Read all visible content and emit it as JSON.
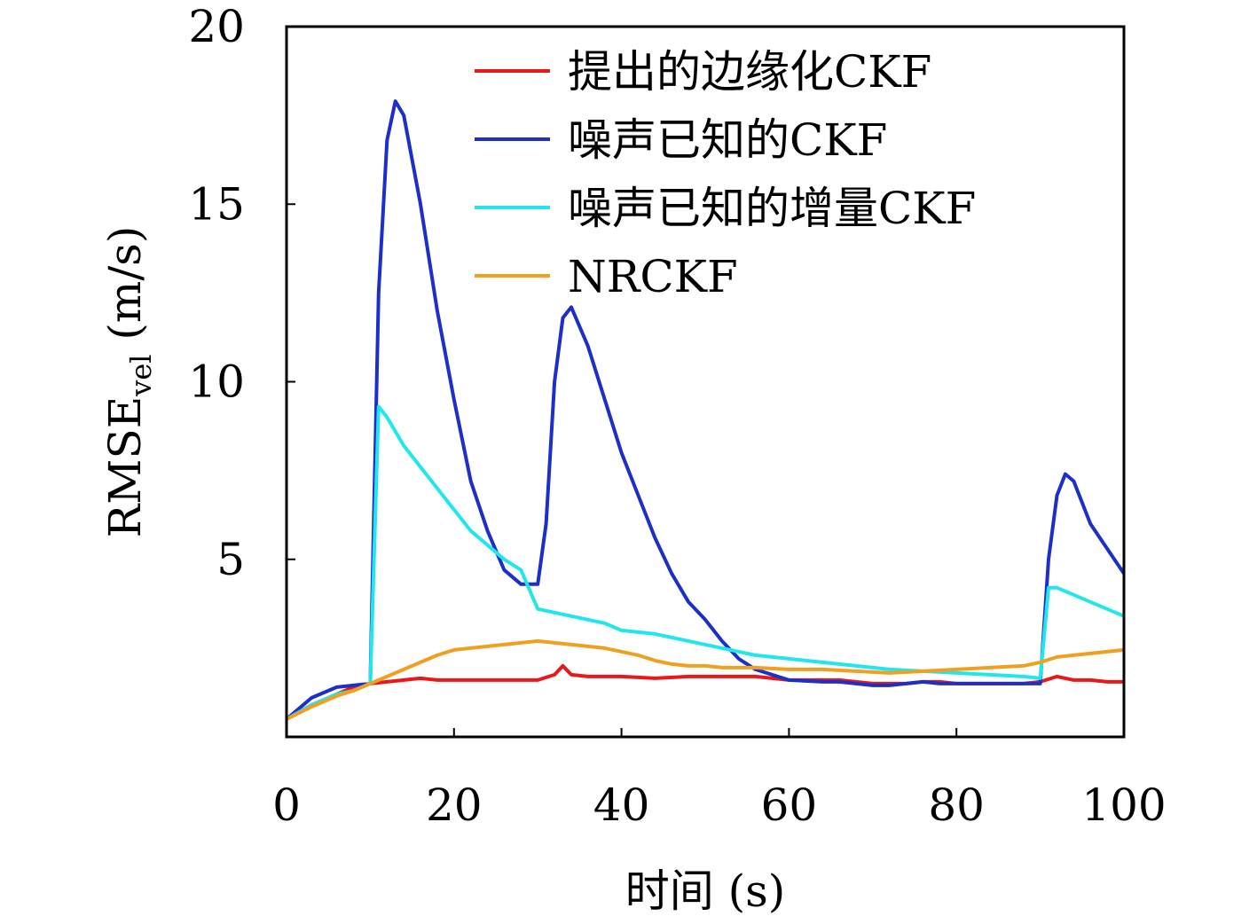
{
  "chart_data": {
    "type": "line",
    "xlabel": "时间 (s)",
    "ylabel": {
      "main": "RMSE",
      "sub": "vel",
      "unit": " (m/s)"
    },
    "xlim": [
      0,
      100
    ],
    "ylim": [
      0,
      20
    ],
    "xticks": [
      {
        "value": 0,
        "label": "0"
      },
      {
        "value": 20,
        "label": "20"
      },
      {
        "value": 40,
        "label": "40"
      },
      {
        "value": 60,
        "label": "60"
      },
      {
        "value": 80,
        "label": "80"
      },
      {
        "value": 100,
        "label": "100"
      }
    ],
    "yticks": [
      {
        "value": 5,
        "label": "5"
      },
      {
        "value": 10,
        "label": "10"
      },
      {
        "value": 15,
        "label": "15"
      },
      {
        "value": 20,
        "label": "20"
      }
    ],
    "grid": false,
    "legend_position": "top-right",
    "series": [
      {
        "name": "提出的边缘化CKF",
        "color": "#e8191b",
        "x": [
          0,
          3,
          6,
          8,
          10,
          12,
          14,
          16,
          18,
          20,
          22,
          24,
          26,
          28,
          30,
          32,
          33,
          34,
          36,
          38,
          40,
          44,
          48,
          52,
          56,
          60,
          64,
          66,
          68,
          70,
          72,
          74,
          76,
          78,
          80,
          84,
          88,
          90,
          92,
          94,
          96,
          98,
          100
        ],
        "y": [
          0.5,
          0.9,
          1.2,
          1.4,
          1.5,
          1.55,
          1.6,
          1.65,
          1.6,
          1.6,
          1.6,
          1.6,
          1.6,
          1.6,
          1.6,
          1.75,
          2.0,
          1.75,
          1.7,
          1.7,
          1.7,
          1.65,
          1.7,
          1.7,
          1.7,
          1.6,
          1.6,
          1.6,
          1.55,
          1.5,
          1.5,
          1.5,
          1.55,
          1.55,
          1.5,
          1.5,
          1.5,
          1.55,
          1.7,
          1.6,
          1.6,
          1.55,
          1.55
        ]
      },
      {
        "name": "噪声已知的CKF",
        "color": "#1c2fc9",
        "x": [
          0,
          3,
          6,
          8,
          10,
          11,
          12,
          13,
          14,
          16,
          18,
          20,
          22,
          24,
          26,
          28,
          30,
          31,
          32,
          33,
          34,
          36,
          38,
          40,
          42,
          44,
          46,
          48,
          50,
          52,
          54,
          56,
          60,
          64,
          66,
          68,
          70,
          72,
          74,
          76,
          78,
          80,
          84,
          88,
          90,
          91,
          92,
          93,
          94,
          96,
          98,
          100
        ],
        "y": [
          0.5,
          1.1,
          1.4,
          1.45,
          1.5,
          12.5,
          16.8,
          17.9,
          17.5,
          15.0,
          12.0,
          9.5,
          7.2,
          5.8,
          4.7,
          4.3,
          4.3,
          6.0,
          10.0,
          11.8,
          12.1,
          11.0,
          9.5,
          8.0,
          6.8,
          5.6,
          4.6,
          3.8,
          3.3,
          2.7,
          2.2,
          1.9,
          1.6,
          1.55,
          1.55,
          1.5,
          1.45,
          1.45,
          1.5,
          1.55,
          1.5,
          1.5,
          1.5,
          1.5,
          1.5,
          5.0,
          6.8,
          7.4,
          7.2,
          6.0,
          5.3,
          4.6
        ]
      },
      {
        "name": "噪声已知的增量CKF",
        "color": "#22e6ee",
        "x": [
          0,
          3,
          6,
          8,
          10,
          11,
          12,
          14,
          16,
          18,
          20,
          22,
          24,
          26,
          28,
          30,
          31,
          32,
          34,
          36,
          38,
          40,
          44,
          48,
          52,
          56,
          60,
          64,
          68,
          72,
          76,
          80,
          84,
          88,
          90,
          91,
          92,
          94,
          96,
          98,
          100
        ],
        "y": [
          0.5,
          0.9,
          1.2,
          1.3,
          1.5,
          9.3,
          9.0,
          8.2,
          7.6,
          7.0,
          6.4,
          5.8,
          5.4,
          5.0,
          4.7,
          3.6,
          3.55,
          3.5,
          3.4,
          3.3,
          3.2,
          3.0,
          2.9,
          2.7,
          2.5,
          2.3,
          2.2,
          2.1,
          2.0,
          1.9,
          1.85,
          1.8,
          1.75,
          1.7,
          1.65,
          4.2,
          4.2,
          4.0,
          3.8,
          3.6,
          3.4
        ]
      },
      {
        "name": "NRCKF",
        "color": "#f0a020",
        "x": [
          0,
          3,
          6,
          8,
          10,
          12,
          14,
          16,
          18,
          20,
          22,
          24,
          26,
          28,
          30,
          32,
          34,
          36,
          38,
          40,
          42,
          44,
          46,
          48,
          50,
          52,
          56,
          60,
          64,
          68,
          72,
          76,
          80,
          84,
          88,
          90,
          92,
          94,
          96,
          98,
          100
        ],
        "y": [
          0.5,
          0.85,
          1.15,
          1.3,
          1.5,
          1.7,
          1.9,
          2.1,
          2.3,
          2.45,
          2.5,
          2.55,
          2.6,
          2.65,
          2.7,
          2.65,
          2.6,
          2.55,
          2.5,
          2.4,
          2.3,
          2.15,
          2.05,
          2.0,
          2.0,
          1.95,
          1.95,
          1.9,
          1.9,
          1.85,
          1.8,
          1.85,
          1.9,
          1.95,
          2.0,
          2.1,
          2.25,
          2.3,
          2.35,
          2.4,
          2.45
        ]
      }
    ]
  }
}
